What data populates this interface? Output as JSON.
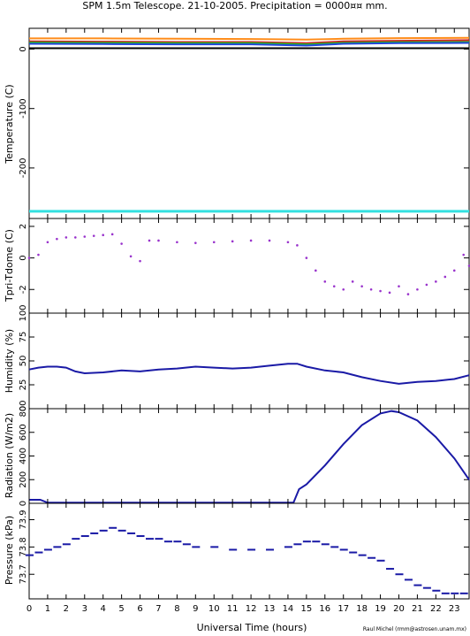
{
  "figure": {
    "title": "SPM 1.5m Telescope. 21-10-2005. Precipitation = 0000¤¤ mm.",
    "xlabel": "Universal Time (hours)",
    "credit": "Raul Michel (rmm@astrosen.unam.mx)",
    "colors": {
      "axes": "#000000",
      "purple": "#9933cc",
      "blue": "#1a1aa6",
      "cyan": "#33e0e0"
    }
  },
  "chart_data": [
    {
      "type": "line",
      "panel": "temperature",
      "ylabel": "Temperature (C)",
      "ylim": [
        -285,
        35
      ],
      "yticks": [
        0,
        -100,
        -200
      ],
      "xlim": [
        0,
        23.8
      ],
      "xticks": [
        "0",
        "1",
        "2",
        "3",
        "4",
        "5",
        "6",
        "7",
        "8",
        "9",
        "10",
        "11",
        "12",
        "13",
        "14",
        "15",
        "16",
        "17",
        "18",
        "19",
        "20",
        "21",
        "22",
        "23"
      ],
      "series": [
        {
          "color": "#ff8c1a",
          "x": [
            0,
            4,
            8,
            12,
            15,
            17,
            20,
            23.8
          ],
          "values": [
            18,
            18,
            17.5,
            17,
            16,
            17.5,
            18.5,
            19
          ]
        },
        {
          "color": "#cc2222",
          "x": [
            0,
            4,
            8,
            12,
            15,
            17,
            20,
            23.8
          ],
          "values": [
            13,
            12.5,
            12,
            12,
            10,
            13,
            14,
            15
          ]
        },
        {
          "color": "#22bb22",
          "x": [
            0,
            4,
            8,
            12,
            15,
            17,
            20,
            23.8
          ],
          "values": [
            11,
            10.5,
            10,
            10,
            8,
            10.5,
            11.5,
            12
          ]
        },
        {
          "color": "#2244dd",
          "x": [
            0,
            4,
            8,
            12,
            15,
            17,
            20,
            23.8
          ],
          "values": [
            9,
            8.5,
            8,
            8,
            6,
            9,
            10,
            10.5
          ]
        },
        {
          "color": "#000000",
          "x": [
            0,
            23.8
          ],
          "values": [
            1.5,
            1.5
          ]
        },
        {
          "color": "#33e0e0",
          "x": [
            0,
            23.8
          ],
          "values": [
            -273,
            -273
          ]
        }
      ]
    },
    {
      "type": "scatter",
      "panel": "tpri-tdome",
      "ylabel": "Tpri-Tdome (C)",
      "ylim": [
        -3.5,
        2.5
      ],
      "yticks": [
        2,
        0,
        -2
      ],
      "xlim": [
        0,
        23.8
      ],
      "series": [
        {
          "color": "#9933cc",
          "x": [
            0,
            0.5,
            1,
            1.5,
            2,
            2.5,
            3,
            3.5,
            4,
            4.5,
            5,
            5.5,
            6,
            6.5,
            7,
            8,
            9,
            10,
            11,
            12,
            13,
            14,
            14.5,
            15,
            15.5,
            16,
            16.5,
            17,
            17.5,
            18,
            18.5,
            19,
            19.5,
            20,
            20.5,
            21,
            21.5,
            22,
            22.5,
            23,
            23.5,
            23.8
          ],
          "values": [
            0,
            0.2,
            1.0,
            1.2,
            1.3,
            1.3,
            1.35,
            1.4,
            1.45,
            1.5,
            0.9,
            0.1,
            -0.2,
            1.1,
            1.1,
            1.0,
            0.95,
            1.0,
            1.05,
            1.1,
            1.1,
            1.0,
            0.8,
            0.0,
            -0.8,
            -1.5,
            -1.8,
            -2.0,
            -1.5,
            -1.8,
            -2.0,
            -2.1,
            -2.2,
            -1.8,
            -2.3,
            -2.0,
            -1.7,
            -1.5,
            -1.2,
            -0.8,
            0.2,
            -0.5
          ]
        }
      ]
    },
    {
      "type": "line",
      "panel": "humidity",
      "ylabel": "Humidity (%)",
      "ylim": [
        0,
        100
      ],
      "yticks": [
        0,
        25,
        50,
        75,
        100
      ],
      "xlim": [
        0,
        23.8
      ],
      "series": [
        {
          "color": "#1a1aa6",
          "x": [
            0,
            0.5,
            1,
            1.5,
            2,
            2.5,
            3,
            4,
            5,
            6,
            7,
            8,
            9,
            10,
            11,
            12,
            13,
            14,
            14.5,
            15,
            16,
            17,
            18,
            19,
            20,
            21,
            22,
            23,
            23.8
          ],
          "values": [
            41,
            43,
            44,
            44,
            43,
            39,
            37,
            38,
            40,
            39,
            41,
            42,
            44,
            43,
            42,
            43,
            45,
            47,
            47,
            44,
            40,
            38,
            33,
            29,
            26,
            28,
            29,
            31,
            35
          ]
        }
      ]
    },
    {
      "type": "line",
      "panel": "radiation",
      "ylabel": "Radiation (W/m2)",
      "ylim": [
        0,
        800
      ],
      "yticks": [
        "0",
        "200",
        "400",
        "600",
        "800"
      ],
      "xlim": [
        0,
        23.8
      ],
      "series": [
        {
          "color": "#1a1aa6",
          "x": [
            0,
            0.6,
            1,
            2,
            4,
            6,
            8,
            10,
            12,
            14.3,
            14.6,
            15,
            16,
            17,
            18,
            19,
            19.6,
            20,
            21,
            22,
            23,
            23.8
          ],
          "values": [
            30,
            30,
            5,
            5,
            5,
            5,
            5,
            5,
            5,
            5,
            120,
            160,
            320,
            500,
            660,
            760,
            780,
            770,
            700,
            560,
            380,
            200
          ]
        }
      ]
    },
    {
      "type": "scatter",
      "panel": "pressure",
      "ylabel": "Pressure (kPa)",
      "ylim": [
        73.61,
        73.96
      ],
      "yticks": [
        73.7,
        73.8,
        73.9
      ],
      "ytick_labels": [
        "73.7",
        "73.8",
        "73.9"
      ],
      "xlim": [
        0,
        23.8
      ],
      "series": [
        {
          "color": "#1a1aa6",
          "x": [
            0,
            0.5,
            1,
            1.5,
            2,
            2.5,
            3,
            3.5,
            4,
            4.5,
            5,
            5.5,
            6,
            6.5,
            7,
            7.5,
            8,
            8.5,
            9,
            10,
            11,
            12,
            13,
            14,
            14.5,
            15,
            15.5,
            16,
            16.5,
            17,
            17.5,
            18,
            18.5,
            19,
            19.5,
            20,
            20.5,
            21,
            21.5,
            22,
            22.5,
            23,
            23.5
          ],
          "values": [
            73.77,
            73.78,
            73.79,
            73.8,
            73.81,
            73.83,
            73.84,
            73.85,
            73.86,
            73.87,
            73.86,
            73.85,
            73.84,
            73.83,
            73.83,
            73.82,
            73.82,
            73.81,
            73.8,
            73.8,
            73.79,
            73.79,
            73.79,
            73.8,
            73.81,
            73.82,
            73.82,
            73.81,
            73.8,
            73.79,
            73.78,
            73.77,
            73.76,
            73.75,
            73.72,
            73.7,
            73.68,
            73.66,
            73.65,
            73.64,
            73.63,
            73.63,
            73.63
          ]
        }
      ]
    }
  ]
}
